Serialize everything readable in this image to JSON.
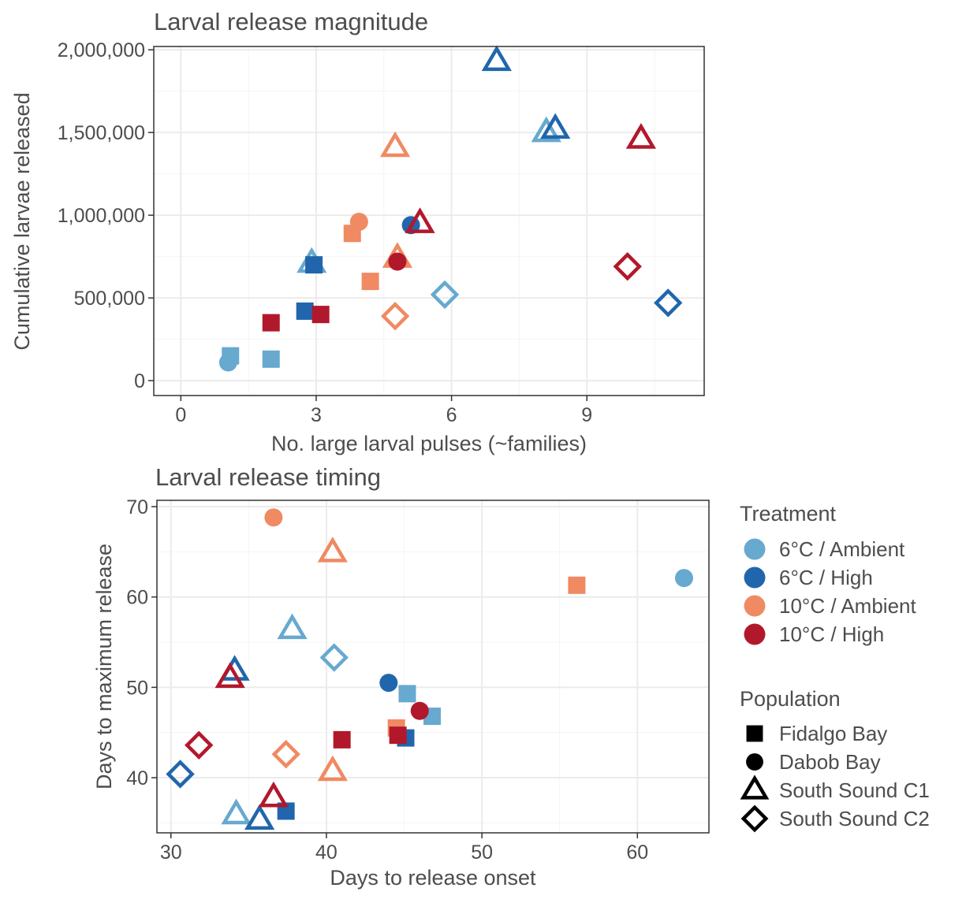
{
  "colors": {
    "6°C / Ambient": "#67a9cf",
    "6°C / High": "#2166ac",
    "10°C / Ambient": "#ef8a62",
    "10°C / High": "#b2182b"
  },
  "shapes": {
    "Fidalgo Bay": "square",
    "Dabob Bay": "circle",
    "South Sound C1": "triangle",
    "South Sound C2": "diamond"
  },
  "legend": {
    "treatment_title": "Treatment",
    "treatments": [
      "6°C / Ambient",
      "6°C / High",
      "10°C / Ambient",
      "10°C / High"
    ],
    "population_title": "Population",
    "populations": [
      "Fidalgo Bay",
      "Dabob Bay",
      "South Sound C1",
      "South Sound C2"
    ]
  },
  "chart_data": [
    {
      "type": "scatter",
      "title": "Larval release magnitude",
      "xlabel": "No. large larval pulses (~families)",
      "ylabel": "Cumulative larvae released",
      "xlim": [
        -0.6,
        11.6
      ],
      "ylim": [
        -90000,
        2020000
      ],
      "xticks": [
        0,
        3,
        6,
        9
      ],
      "xtick_labels": [
        "0",
        "3",
        "6",
        "9"
      ],
      "yticks": [
        0,
        500000,
        1000000,
        1500000,
        2000000
      ],
      "ytick_labels": [
        "0",
        "500,000",
        "1,000,000",
        "1,500,000",
        "2,000,000"
      ],
      "grid": true,
      "points": [
        {
          "x": 1.1,
          "y": 150000,
          "treatment": "6°C / Ambient",
          "population": "Fidalgo Bay"
        },
        {
          "x": 2.0,
          "y": 130000,
          "treatment": "6°C / Ambient",
          "population": "Fidalgo Bay"
        },
        {
          "x": 1.05,
          "y": 110000,
          "treatment": "6°C / Ambient",
          "population": "Dabob Bay"
        },
        {
          "x": 2.9,
          "y": 710000,
          "treatment": "6°C / Ambient",
          "population": "South Sound C1"
        },
        {
          "x": 8.1,
          "y": 1500000,
          "treatment": "6°C / Ambient",
          "population": "South Sound C1"
        },
        {
          "x": 5.85,
          "y": 520000,
          "treatment": "6°C / Ambient",
          "population": "South Sound C2"
        },
        {
          "x": 2.75,
          "y": 420000,
          "treatment": "6°C / High",
          "population": "Fidalgo Bay"
        },
        {
          "x": 2.95,
          "y": 700000,
          "treatment": "6°C / High",
          "population": "Fidalgo Bay"
        },
        {
          "x": 5.1,
          "y": 940000,
          "treatment": "6°C / High",
          "population": "Dabob Bay"
        },
        {
          "x": 7.0,
          "y": 1930000,
          "treatment": "6°C / High",
          "population": "South Sound C1"
        },
        {
          "x": 8.3,
          "y": 1520000,
          "treatment": "6°C / High",
          "population": "South Sound C1"
        },
        {
          "x": 10.8,
          "y": 470000,
          "treatment": "6°C / High",
          "population": "South Sound C2"
        },
        {
          "x": 3.8,
          "y": 890000,
          "treatment": "10°C / Ambient",
          "population": "Fidalgo Bay"
        },
        {
          "x": 4.2,
          "y": 600000,
          "treatment": "10°C / Ambient",
          "population": "Fidalgo Bay"
        },
        {
          "x": 3.95,
          "y": 960000,
          "treatment": "10°C / Ambient",
          "population": "Dabob Bay"
        },
        {
          "x": 4.75,
          "y": 1410000,
          "treatment": "10°C / Ambient",
          "population": "South Sound C1"
        },
        {
          "x": 4.8,
          "y": 740000,
          "treatment": "10°C / Ambient",
          "population": "South Sound C1"
        },
        {
          "x": 4.75,
          "y": 390000,
          "treatment": "10°C / Ambient",
          "population": "South Sound C2"
        },
        {
          "x": 2.0,
          "y": 350000,
          "treatment": "10°C / High",
          "population": "Fidalgo Bay"
        },
        {
          "x": 3.1,
          "y": 400000,
          "treatment": "10°C / High",
          "population": "Fidalgo Bay"
        },
        {
          "x": 4.8,
          "y": 720000,
          "treatment": "10°C / High",
          "population": "Dabob Bay"
        },
        {
          "x": 5.3,
          "y": 950000,
          "treatment": "10°C / High",
          "population": "South Sound C1"
        },
        {
          "x": 10.2,
          "y": 1460000,
          "treatment": "10°C / High",
          "population": "South Sound C1"
        },
        {
          "x": 9.9,
          "y": 690000,
          "treatment": "10°C / High",
          "population": "South Sound C2"
        }
      ]
    },
    {
      "type": "scatter",
      "title": "Larval release timing",
      "xlabel": "Days to release onset",
      "ylabel": "Days to maximum release",
      "xlim": [
        29.1,
        64.6
      ],
      "ylim": [
        33.9,
        70.7
      ],
      "xticks": [
        30,
        40,
        50,
        60
      ],
      "xtick_labels": [
        "30",
        "40",
        "50",
        "60"
      ],
      "yticks": [
        40,
        50,
        60,
        70
      ],
      "ytick_labels": [
        "40",
        "50",
        "60",
        "70"
      ],
      "grid": true,
      "points": [
        {
          "x": 45.2,
          "y": 49.3,
          "treatment": "6°C / Ambient",
          "population": "Fidalgo Bay"
        },
        {
          "x": 46.8,
          "y": 46.8,
          "treatment": "6°C / Ambient",
          "population": "Fidalgo Bay"
        },
        {
          "x": 63.0,
          "y": 62.1,
          "treatment": "6°C / Ambient",
          "population": "Dabob Bay"
        },
        {
          "x": 37.8,
          "y": 56.4,
          "treatment": "6°C / Ambient",
          "population": "South Sound C1"
        },
        {
          "x": 34.2,
          "y": 35.9,
          "treatment": "6°C / Ambient",
          "population": "South Sound C1"
        },
        {
          "x": 40.5,
          "y": 53.3,
          "treatment": "6°C / Ambient",
          "population": "South Sound C2"
        },
        {
          "x": 37.4,
          "y": 36.3,
          "treatment": "6°C / High",
          "population": "Fidalgo Bay"
        },
        {
          "x": 45.1,
          "y": 44.4,
          "treatment": "6°C / High",
          "population": "Fidalgo Bay"
        },
        {
          "x": 44.0,
          "y": 50.5,
          "treatment": "6°C / High",
          "population": "Dabob Bay"
        },
        {
          "x": 34.1,
          "y": 51.8,
          "treatment": "6°C / High",
          "population": "South Sound C1"
        },
        {
          "x": 35.7,
          "y": 35.3,
          "treatment": "6°C / High",
          "population": "South Sound C1"
        },
        {
          "x": 30.6,
          "y": 40.4,
          "treatment": "6°C / High",
          "population": "South Sound C2"
        },
        {
          "x": 56.1,
          "y": 61.3,
          "treatment": "10°C / Ambient",
          "population": "Fidalgo Bay"
        },
        {
          "x": 44.5,
          "y": 45.5,
          "treatment": "10°C / Ambient",
          "population": "Fidalgo Bay"
        },
        {
          "x": 36.6,
          "y": 68.8,
          "treatment": "10°C / Ambient",
          "population": "Dabob Bay"
        },
        {
          "x": 40.4,
          "y": 64.9,
          "treatment": "10°C / Ambient",
          "population": "South Sound C1"
        },
        {
          "x": 40.4,
          "y": 40.7,
          "treatment": "10°C / Ambient",
          "population": "South Sound C1"
        },
        {
          "x": 37.4,
          "y": 42.6,
          "treatment": "10°C / Ambient",
          "population": "South Sound C2"
        },
        {
          "x": 41.0,
          "y": 44.2,
          "treatment": "10°C / High",
          "population": "Fidalgo Bay"
        },
        {
          "x": 44.6,
          "y": 44.7,
          "treatment": "10°C / High",
          "population": "Fidalgo Bay"
        },
        {
          "x": 46.0,
          "y": 47.4,
          "treatment": "10°C / High",
          "population": "Dabob Bay"
        },
        {
          "x": 33.8,
          "y": 51.0,
          "treatment": "10°C / High",
          "population": "South Sound C1"
        },
        {
          "x": 36.6,
          "y": 37.8,
          "treatment": "10°C / High",
          "population": "South Sound C1"
        },
        {
          "x": 31.8,
          "y": 43.6,
          "treatment": "10°C / High",
          "population": "South Sound C2"
        }
      ]
    }
  ]
}
